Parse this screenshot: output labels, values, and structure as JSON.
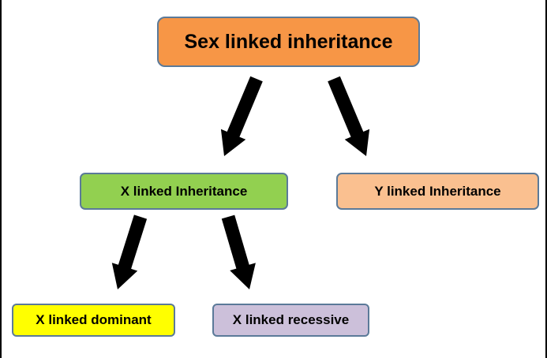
{
  "diagram": {
    "nodes": [
      {
        "id": "root",
        "label": "Sex linked inheritance",
        "color": "#f79646"
      },
      {
        "id": "x",
        "label": "X linked Inheritance",
        "color": "#92d050"
      },
      {
        "id": "y",
        "label": "Y linked Inheritance",
        "color": "#fac090"
      },
      {
        "id": "xd",
        "label": "X linked dominant",
        "color": "#ffff00"
      },
      {
        "id": "xr",
        "label": "X linked recessive",
        "color": "#ccc0da"
      }
    ],
    "edges": [
      {
        "from": "root",
        "to": "x"
      },
      {
        "from": "root",
        "to": "y"
      },
      {
        "from": "x",
        "to": "xd"
      },
      {
        "from": "x",
        "to": "xr"
      }
    ],
    "arrow_color": "#000000",
    "border_color": "#5b7a99"
  }
}
